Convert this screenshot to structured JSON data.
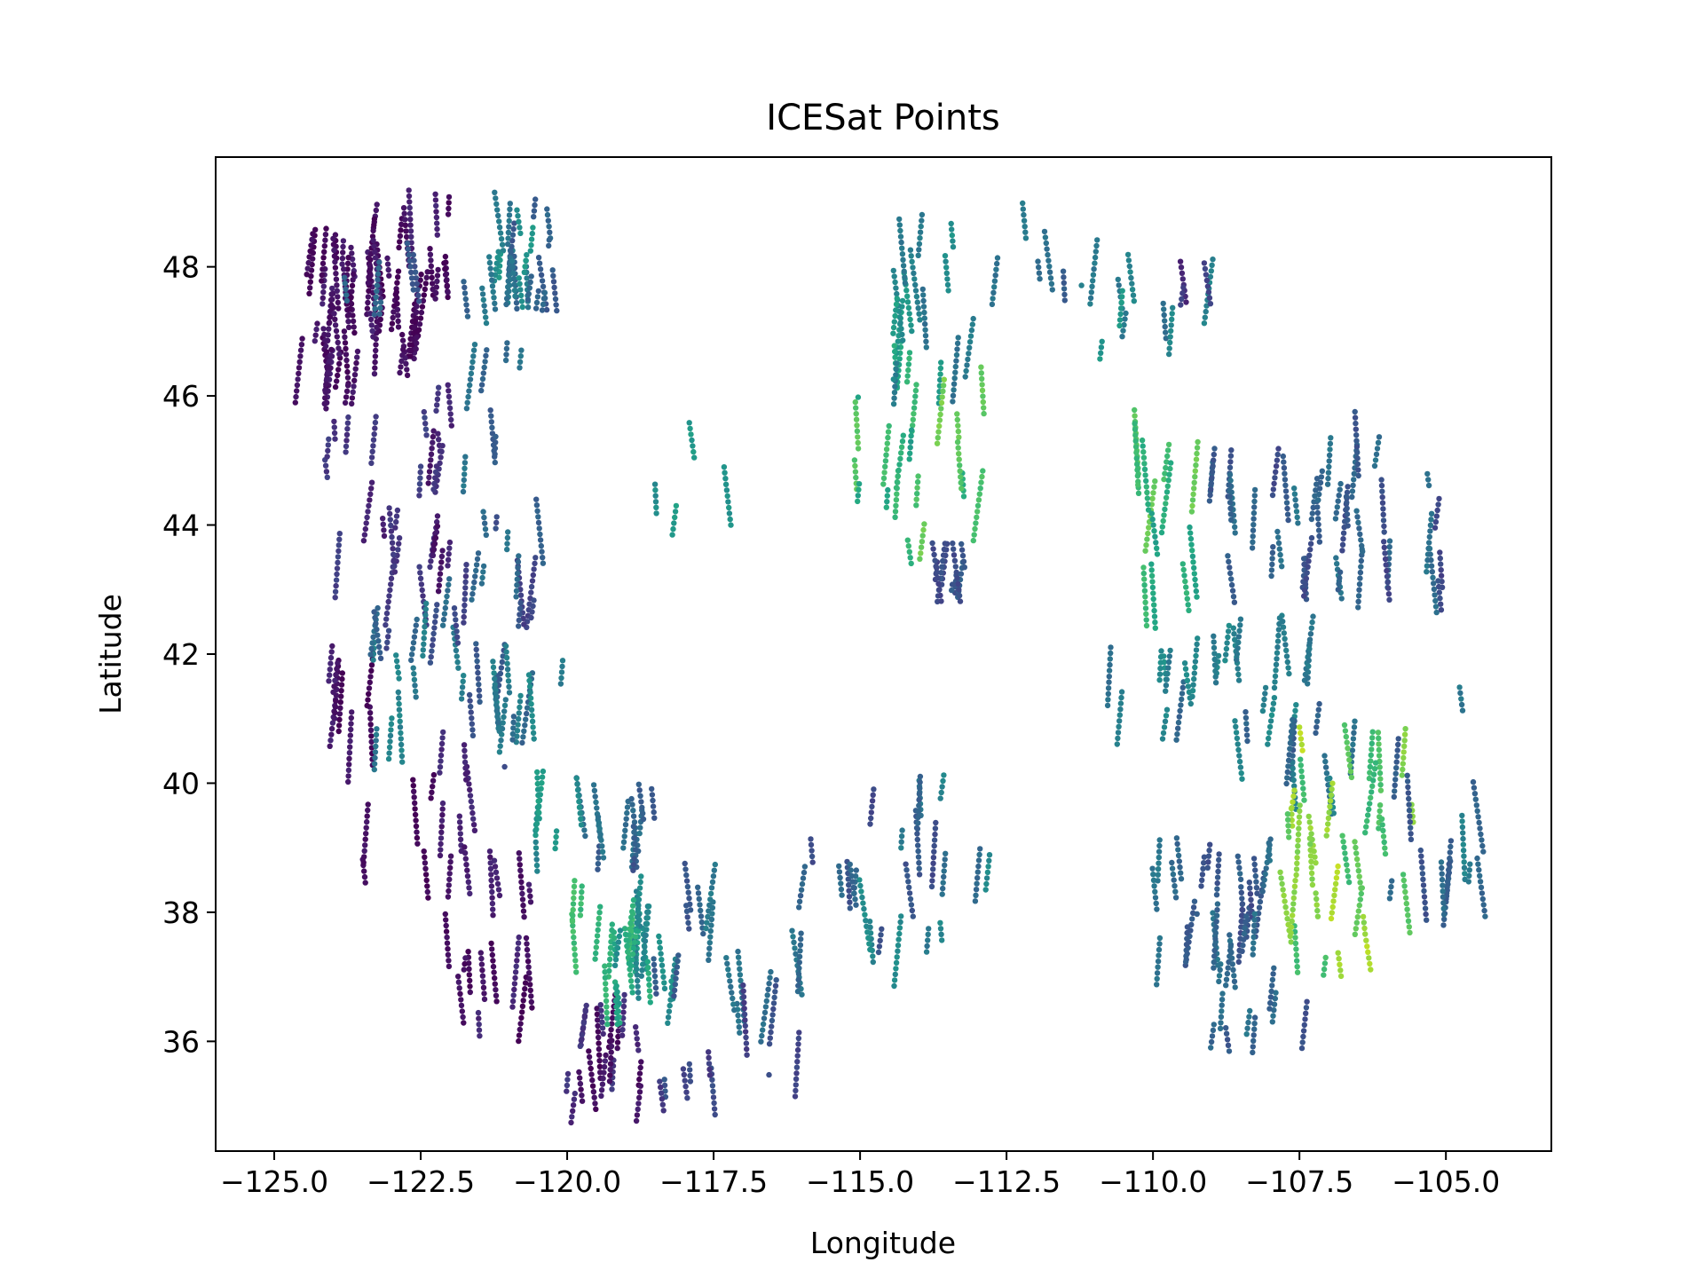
{
  "chart_data": {
    "type": "scatter",
    "title": "ICESat Points",
    "xlabel": "Longitude",
    "ylabel": "Latitude",
    "xlim": [
      -126.0,
      -103.2
    ],
    "ylim": [
      34.3,
      49.7
    ],
    "xticks": [
      -125.0,
      -122.5,
      -120.0,
      -117.5,
      -115.0,
      -112.5,
      -110.0,
      -107.5,
      -105.0
    ],
    "xtick_labels": [
      "−125.0",
      "−122.5",
      "−120.0",
      "−117.5",
      "−115.0",
      "−112.5",
      "−110.0",
      "−107.5",
      "−105.0"
    ],
    "yticks": [
      36,
      38,
      40,
      42,
      44,
      46,
      48
    ],
    "ytick_labels": [
      "36",
      "38",
      "40",
      "42",
      "44",
      "46",
      "48"
    ],
    "grid": false,
    "colormap": "viridis",
    "colormap_stops": [
      "#440154",
      "#482475",
      "#414487",
      "#355f8d",
      "#2a788e",
      "#21918c",
      "#22a884",
      "#44bf70",
      "#7ad151",
      "#bddf26",
      "#fde725"
    ],
    "point_color_value": "normalized color value 0-1 (colorbar not shown)",
    "clusters": [
      {
        "lon": [
          -124.6,
          -123.6
        ],
        "lat": [
          46.0,
          48.4
        ],
        "c": [
          0.0,
          0.08
        ],
        "n": 220
      },
      {
        "lon": [
          -123.4,
          -122.0
        ],
        "lat": [
          46.5,
          49.0
        ],
        "c": [
          0.0,
          0.1
        ],
        "n": 240
      },
      {
        "lon": [
          -123.8,
          -122.4
        ],
        "lat": [
          47.4,
          48.2
        ],
        "c": [
          0.2,
          0.35
        ],
        "n": 40
      },
      {
        "lon": [
          -121.8,
          -120.2
        ],
        "lat": [
          47.5,
          49.0
        ],
        "c": [
          0.25,
          0.55
        ],
        "n": 160
      },
      {
        "lon": [
          -122.0,
          -120.6
        ],
        "lat": [
          46.0,
          48.0
        ],
        "c": [
          0.2,
          0.45
        ],
        "n": 60
      },
      {
        "lon": [
          -124.2,
          -122.0
        ],
        "lat": [
          42.6,
          46.0
        ],
        "c": [
          0.05,
          0.2
        ],
        "n": 170
      },
      {
        "lon": [
          -122.3,
          -120.2
        ],
        "lat": [
          42.6,
          45.6
        ],
        "c": [
          0.15,
          0.4
        ],
        "n": 140
      },
      {
        "lon": [
          -124.5,
          -123.2
        ],
        "lat": [
          40.2,
          42.0
        ],
        "c": [
          0.0,
          0.1
        ],
        "n": 80
      },
      {
        "lon": [
          -123.4,
          -121.0
        ],
        "lat": [
          40.4,
          42.6
        ],
        "c": [
          0.2,
          0.45
        ],
        "n": 170
      },
      {
        "lon": [
          -121.4,
          -120.0
        ],
        "lat": [
          40.8,
          42.0
        ],
        "c": [
          0.3,
          0.5
        ],
        "n": 80
      },
      {
        "lon": [
          -123.6,
          -121.6
        ],
        "lat": [
          38.4,
          40.6
        ],
        "c": [
          0.0,
          0.12
        ],
        "n": 110
      },
      {
        "lon": [
          -122.2,
          -120.6
        ],
        "lat": [
          36.2,
          38.8
        ],
        "c": [
          0.0,
          0.12
        ],
        "n": 130
      },
      {
        "lon": [
          -120.0,
          -118.4
        ],
        "lat": [
          34.9,
          36.6
        ],
        "c": [
          0.0,
          0.18
        ],
        "n": 130
      },
      {
        "lon": [
          -119.8,
          -118.4
        ],
        "lat": [
          38.8,
          40.0
        ],
        "c": [
          0.25,
          0.4
        ],
        "n": 90
      },
      {
        "lon": [
          -121.0,
          -119.8
        ],
        "lat": [
          38.8,
          40.0
        ],
        "c": [
          0.35,
          0.6
        ],
        "n": 50
      },
      {
        "lon": [
          -120.0,
          -118.6
        ],
        "lat": [
          37.2,
          38.4
        ],
        "c": [
          0.45,
          0.7
        ],
        "n": 130
      },
      {
        "lon": [
          -119.4,
          -118.2
        ],
        "lat": [
          36.4,
          37.6
        ],
        "c": [
          0.4,
          0.65
        ],
        "n": 110
      },
      {
        "lon": [
          -118.6,
          -116.0
        ],
        "lat": [
          35.0,
          37.2
        ],
        "c": [
          0.15,
          0.4
        ],
        "n": 130
      },
      {
        "lon": [
          -118.6,
          -117.4
        ],
        "lat": [
          37.4,
          38.6
        ],
        "c": [
          0.25,
          0.45
        ],
        "n": 50
      },
      {
        "lon": [
          -119.0,
          -116.6
        ],
        "lat": [
          43.0,
          46.4
        ],
        "c": [
          0.4,
          0.7
        ],
        "n": 30
      },
      {
        "lon": [
          -116.2,
          -112.0
        ],
        "lat": [
          36.9,
          40.0
        ],
        "c": [
          0.2,
          0.5
        ],
        "n": 170
      },
      {
        "lon": [
          -116.0,
          -114.6
        ],
        "lat": [
          38.2,
          38.6
        ],
        "c": [
          0.25,
          0.35
        ],
        "n": 40
      },
      {
        "lon": [
          -114.6,
          -113.0
        ],
        "lat": [
          46.0,
          49.0
        ],
        "c": [
          0.35,
          0.6
        ],
        "n": 160
      },
      {
        "lon": [
          -113.0,
          -111.0
        ],
        "lat": [
          47.4,
          49.0
        ],
        "c": [
          0.25,
          0.45
        ],
        "n": 50
      },
      {
        "lon": [
          -115.2,
          -112.8
        ],
        "lat": [
          43.6,
          46.5
        ],
        "c": [
          0.55,
          0.8
        ],
        "n": 150
      },
      {
        "lon": [
          -113.8,
          -113.2
        ],
        "lat": [
          43.0,
          43.6
        ],
        "c": [
          0.2,
          0.3
        ],
        "n": 70
      },
      {
        "lon": [
          -111.0,
          -109.0
        ],
        "lat": [
          46.5,
          48.0
        ],
        "c": [
          0.35,
          0.6
        ],
        "n": 60
      },
      {
        "lon": [
          -109.5,
          -108.8
        ],
        "lat": [
          47.6,
          47.9
        ],
        "c": [
          0.1,
          0.2
        ],
        "n": 25
      },
      {
        "lon": [
          -110.4,
          -109.2
        ],
        "lat": [
          42.6,
          45.6
        ],
        "c": [
          0.55,
          0.85
        ],
        "n": 140
      },
      {
        "lon": [
          -109.0,
          -107.0
        ],
        "lat": [
          43.0,
          45.0
        ],
        "c": [
          0.2,
          0.4
        ],
        "n": 160
      },
      {
        "lon": [
          -107.0,
          -105.0
        ],
        "lat": [
          42.8,
          45.6
        ],
        "c": [
          0.2,
          0.4
        ],
        "n": 170
      },
      {
        "lon": [
          -110.8,
          -107.0
        ],
        "lat": [
          40.8,
          42.4
        ],
        "c": [
          0.3,
          0.5
        ],
        "n": 200
      },
      {
        "lon": [
          -110.0,
          -108.0
        ],
        "lat": [
          37.0,
          39.0
        ],
        "c": [
          0.2,
          0.4
        ],
        "n": 190
      },
      {
        "lon": [
          -109.0,
          -107.0
        ],
        "lat": [
          36.0,
          38.0
        ],
        "c": [
          0.25,
          0.4
        ],
        "n": 80
      },
      {
        "lon": [
          -108.6,
          -106.2
        ],
        "lat": [
          39.6,
          40.8
        ],
        "c": [
          0.25,
          0.5
        ],
        "n": 80
      },
      {
        "lon": [
          -107.8,
          -105.4
        ],
        "lat": [
          37.2,
          40.8
        ],
        "c": [
          0.65,
          0.9
        ],
        "n": 240
      },
      {
        "lon": [
          -106.0,
          -104.2
        ],
        "lat": [
          38.0,
          42.0
        ],
        "c": [
          0.25,
          0.45
        ],
        "n": 120
      }
    ]
  }
}
